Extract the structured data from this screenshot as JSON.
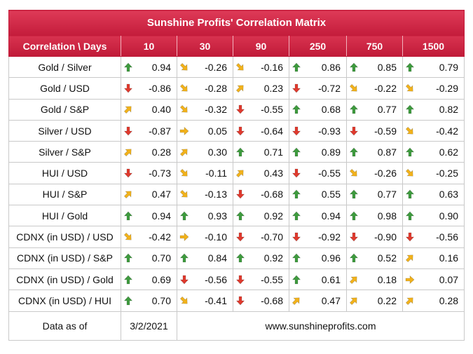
{
  "title": "Sunshine Profits' Correlation Matrix",
  "corner_label": "Correlation \\ Days",
  "columns": [
    "10",
    "30",
    "90",
    "250",
    "750",
    "1500"
  ],
  "rows": [
    {
      "label": "Gold / Silver",
      "cells": [
        {
          "v": "0.94",
          "t": "up"
        },
        {
          "v": "-0.26",
          "t": "down-right"
        },
        {
          "v": "-0.16",
          "t": "down-right"
        },
        {
          "v": "0.86",
          "t": "up"
        },
        {
          "v": "0.85",
          "t": "up"
        },
        {
          "v": "0.79",
          "t": "up"
        }
      ]
    },
    {
      "label": "Gold / USD",
      "cells": [
        {
          "v": "-0.86",
          "t": "down"
        },
        {
          "v": "-0.28",
          "t": "down-right"
        },
        {
          "v": "0.23",
          "t": "up-right"
        },
        {
          "v": "-0.72",
          "t": "down"
        },
        {
          "v": "-0.22",
          "t": "down-right"
        },
        {
          "v": "-0.29",
          "t": "down-right"
        }
      ]
    },
    {
      "label": "Gold / S&P",
      "cells": [
        {
          "v": "0.40",
          "t": "up-right"
        },
        {
          "v": "-0.32",
          "t": "down-right"
        },
        {
          "v": "-0.55",
          "t": "down"
        },
        {
          "v": "0.68",
          "t": "up"
        },
        {
          "v": "0.77",
          "t": "up"
        },
        {
          "v": "0.82",
          "t": "up"
        }
      ]
    },
    {
      "label": "Silver / USD",
      "cells": [
        {
          "v": "-0.87",
          "t": "down"
        },
        {
          "v": "0.05",
          "t": "right"
        },
        {
          "v": "-0.64",
          "t": "down"
        },
        {
          "v": "-0.93",
          "t": "down"
        },
        {
          "v": "-0.59",
          "t": "down"
        },
        {
          "v": "-0.42",
          "t": "down-right"
        }
      ]
    },
    {
      "label": "Silver / S&P",
      "cells": [
        {
          "v": "0.28",
          "t": "up-right"
        },
        {
          "v": "0.30",
          "t": "up-right"
        },
        {
          "v": "0.71",
          "t": "up"
        },
        {
          "v": "0.89",
          "t": "up"
        },
        {
          "v": "0.87",
          "t": "up"
        },
        {
          "v": "0.62",
          "t": "up"
        }
      ]
    },
    {
      "label": "HUI / USD",
      "cells": [
        {
          "v": "-0.73",
          "t": "down"
        },
        {
          "v": "-0.11",
          "t": "down-right"
        },
        {
          "v": "0.43",
          "t": "up-right"
        },
        {
          "v": "-0.55",
          "t": "down"
        },
        {
          "v": "-0.26",
          "t": "down-right"
        },
        {
          "v": "-0.25",
          "t": "down-right"
        }
      ]
    },
    {
      "label": "HUI / S&P",
      "cells": [
        {
          "v": "0.47",
          "t": "up-right"
        },
        {
          "v": "-0.13",
          "t": "down-right"
        },
        {
          "v": "-0.68",
          "t": "down"
        },
        {
          "v": "0.55",
          "t": "up"
        },
        {
          "v": "0.77",
          "t": "up"
        },
        {
          "v": "0.63",
          "t": "up"
        }
      ]
    },
    {
      "label": "HUI / Gold",
      "cells": [
        {
          "v": "0.94",
          "t": "up"
        },
        {
          "v": "0.93",
          "t": "up"
        },
        {
          "v": "0.92",
          "t": "up"
        },
        {
          "v": "0.94",
          "t": "up"
        },
        {
          "v": "0.98",
          "t": "up"
        },
        {
          "v": "0.90",
          "t": "up"
        }
      ]
    },
    {
      "label": "CDNX (in USD) / USD",
      "cells": [
        {
          "v": "-0.42",
          "t": "down-right"
        },
        {
          "v": "-0.10",
          "t": "right"
        },
        {
          "v": "-0.70",
          "t": "down"
        },
        {
          "v": "-0.92",
          "t": "down"
        },
        {
          "v": "-0.90",
          "t": "down"
        },
        {
          "v": "-0.56",
          "t": "down"
        }
      ]
    },
    {
      "label": "CDNX (in USD) / S&P",
      "cells": [
        {
          "v": "0.70",
          "t": "up"
        },
        {
          "v": "0.84",
          "t": "up"
        },
        {
          "v": "0.92",
          "t": "up"
        },
        {
          "v": "0.96",
          "t": "up"
        },
        {
          "v": "0.52",
          "t": "up"
        },
        {
          "v": "0.16",
          "t": "up-right"
        }
      ]
    },
    {
      "label": "CDNX (in USD) / Gold",
      "cells": [
        {
          "v": "0.69",
          "t": "up"
        },
        {
          "v": "-0.56",
          "t": "down"
        },
        {
          "v": "-0.55",
          "t": "down"
        },
        {
          "v": "0.61",
          "t": "up"
        },
        {
          "v": "0.18",
          "t": "up-right"
        },
        {
          "v": "0.07",
          "t": "right"
        }
      ]
    },
    {
      "label": "CDNX (in USD) / HUI",
      "cells": [
        {
          "v": "0.70",
          "t": "up"
        },
        {
          "v": "-0.41",
          "t": "down-right"
        },
        {
          "v": "-0.68",
          "t": "down"
        },
        {
          "v": "0.47",
          "t": "up-right"
        },
        {
          "v": "0.22",
          "t": "up-right"
        },
        {
          "v": "0.28",
          "t": "up-right"
        }
      ]
    }
  ],
  "footer": {
    "label": "Data as of",
    "date": "3/2/2021",
    "url": "www.sunshineprofits.com"
  },
  "icons": {
    "up": "green-up-arrow-icon",
    "down": "red-down-arrow-icon",
    "up-right": "orange-up-right-arrow-icon",
    "down-right": "orange-down-right-arrow-icon",
    "right": "orange-right-arrow-icon"
  },
  "colors": {
    "header_red": "#c41c3b",
    "arrow_green": "#3e9b3e",
    "arrow_red": "#e03a2e",
    "arrow_orange": "#f2b21b"
  }
}
